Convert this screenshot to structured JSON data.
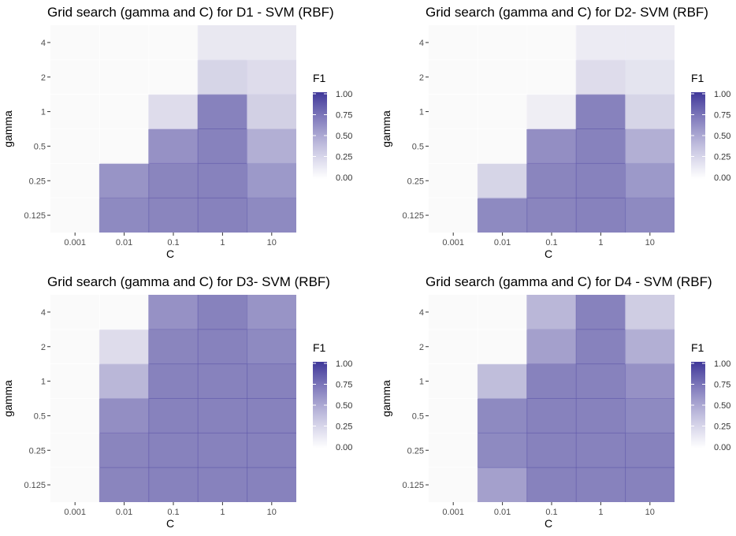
{
  "colors": {
    "low": "#ffffff",
    "high": "#3f3799",
    "panel_bg": "#ebebeb",
    "cell_alpha": 0.75
  },
  "chart_data": [
    {
      "type": "heatmap",
      "title": "Grid search (gamma and C) for D1 - SVM (RBF)",
      "xlabel": "C",
      "ylabel": "gamma",
      "x": [
        "0.001",
        "0.01",
        "0.1",
        "1",
        "10"
      ],
      "y": [
        "0.125",
        "0.25",
        "0.5",
        "1",
        "2",
        "4"
      ],
      "legend": {
        "title": "F1",
        "ticks": [
          "1.00",
          "0.75",
          "0.50",
          "0.25",
          "0.00"
        ],
        "range": [
          0,
          1
        ],
        "position": "right"
      },
      "values": [
        [
          0.0,
          0.75,
          0.78,
          0.8,
          0.75
        ],
        [
          0.0,
          0.68,
          0.78,
          0.8,
          0.65
        ],
        [
          0.0,
          0.0,
          0.7,
          0.8,
          0.5
        ],
        [
          0.0,
          0.0,
          0.2,
          0.8,
          0.28
        ],
        [
          0.0,
          0.0,
          0.0,
          0.25,
          0.2
        ],
        [
          0.0,
          0.0,
          0.0,
          0.12,
          0.12
        ]
      ]
    },
    {
      "type": "heatmap",
      "title": "Grid search (gamma and C) for D2- SVM (RBF)",
      "xlabel": "C",
      "ylabel": "gamma",
      "x": [
        "0.001",
        "0.01",
        "0.1",
        "1",
        "10"
      ],
      "y": [
        "0.125",
        "0.25",
        "0.5",
        "1",
        "2",
        "4"
      ],
      "legend": {
        "title": "F1",
        "ticks": [
          "1.00",
          "0.75",
          "0.50",
          "0.25",
          "0.00"
        ],
        "range": [
          0,
          1
        ],
        "position": "right"
      },
      "values": [
        [
          0.0,
          0.75,
          0.78,
          0.8,
          0.75
        ],
        [
          0.0,
          0.25,
          0.78,
          0.8,
          0.65
        ],
        [
          0.0,
          0.0,
          0.72,
          0.8,
          0.5
        ],
        [
          0.0,
          0.0,
          0.08,
          0.8,
          0.25
        ],
        [
          0.0,
          0.0,
          0.0,
          0.2,
          0.15
        ],
        [
          0.0,
          0.0,
          0.0,
          0.1,
          0.1
        ]
      ]
    },
    {
      "type": "heatmap",
      "title": "Grid search (gamma and C) for D3- SVM (RBF)",
      "xlabel": "C",
      "ylabel": "gamma",
      "x": [
        "0.001",
        "0.01",
        "0.1",
        "1",
        "10"
      ],
      "y": [
        "0.125",
        "0.25",
        "0.5",
        "1",
        "2",
        "4"
      ],
      "legend": {
        "title": "F1",
        "ticks": [
          "1.00",
          "0.75",
          "0.50",
          "0.25",
          "0.00"
        ],
        "range": [
          0,
          1
        ],
        "position": "right"
      },
      "values": [
        [
          0.0,
          0.78,
          0.8,
          0.8,
          0.8
        ],
        [
          0.0,
          0.78,
          0.8,
          0.8,
          0.8
        ],
        [
          0.0,
          0.72,
          0.8,
          0.8,
          0.8
        ],
        [
          0.0,
          0.45,
          0.8,
          0.8,
          0.8
        ],
        [
          0.0,
          0.2,
          0.78,
          0.8,
          0.75
        ],
        [
          0.0,
          0.0,
          0.7,
          0.8,
          0.68
        ]
      ]
    },
    {
      "type": "heatmap",
      "title": "Grid search (gamma and C) for D4 - SVM (RBF)",
      "xlabel": "C",
      "ylabel": "gamma",
      "x": [
        "0.001",
        "0.01",
        "0.1",
        "1",
        "10"
      ],
      "y": [
        "0.125",
        "0.25",
        "0.5",
        "1",
        "2",
        "4"
      ],
      "legend": {
        "title": "F1",
        "ticks": [
          "1.00",
          "0.75",
          "0.50",
          "0.25",
          "0.00"
        ],
        "range": [
          0,
          1
        ],
        "position": "right"
      },
      "values": [
        [
          0.0,
          0.6,
          0.8,
          0.8,
          0.8
        ],
        [
          0.0,
          0.75,
          0.8,
          0.8,
          0.8
        ],
        [
          0.0,
          0.75,
          0.8,
          0.8,
          0.75
        ],
        [
          0.0,
          0.4,
          0.8,
          0.8,
          0.7
        ],
        [
          0.0,
          0.0,
          0.6,
          0.8,
          0.5
        ],
        [
          0.0,
          0.0,
          0.45,
          0.8,
          0.3
        ]
      ]
    }
  ]
}
